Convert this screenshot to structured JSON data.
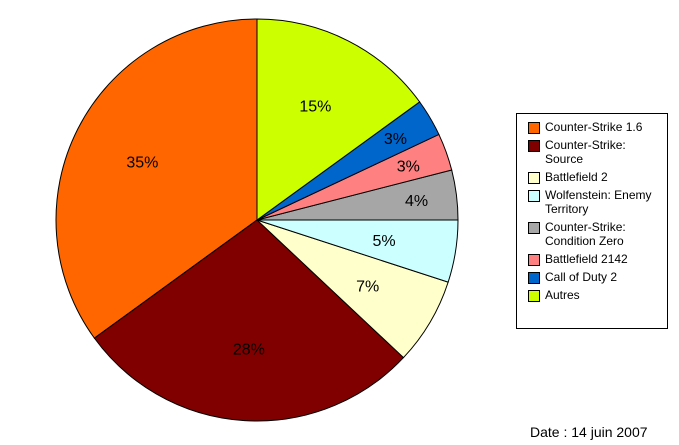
{
  "chart_data": {
    "type": "pie",
    "slices": [
      {
        "label": "Counter-Strike 1.6",
        "value": 35,
        "display": "35%",
        "color": "#ff6600"
      },
      {
        "label": "Counter-Strike: Source",
        "value": 28,
        "display": "28%",
        "color": "#800000"
      },
      {
        "label": "Battlefield 2",
        "value": 7,
        "display": "7%",
        "color": "#ffffcc"
      },
      {
        "label": "Wolfenstein: Enemy Territory",
        "value": 5,
        "display": "5%",
        "color": "#ccffff"
      },
      {
        "label": "Counter-Strike: Condition Zero",
        "value": 4,
        "display": "4%",
        "color": "#a6a6a6"
      },
      {
        "label": "Battlefield 2142",
        "value": 3,
        "display": "3%",
        "color": "#ff8080"
      },
      {
        "label": "Call of Duty 2",
        "value": 3,
        "display": "3%",
        "color": "#0066cc"
      },
      {
        "label": "Autres",
        "value": 15,
        "display": "15%",
        "color": "#ccff00"
      }
    ],
    "legend_position": "right",
    "start": "top",
    "direction": "counterclockwise"
  },
  "footer": {
    "date": "Date : 14 juin 2007"
  }
}
